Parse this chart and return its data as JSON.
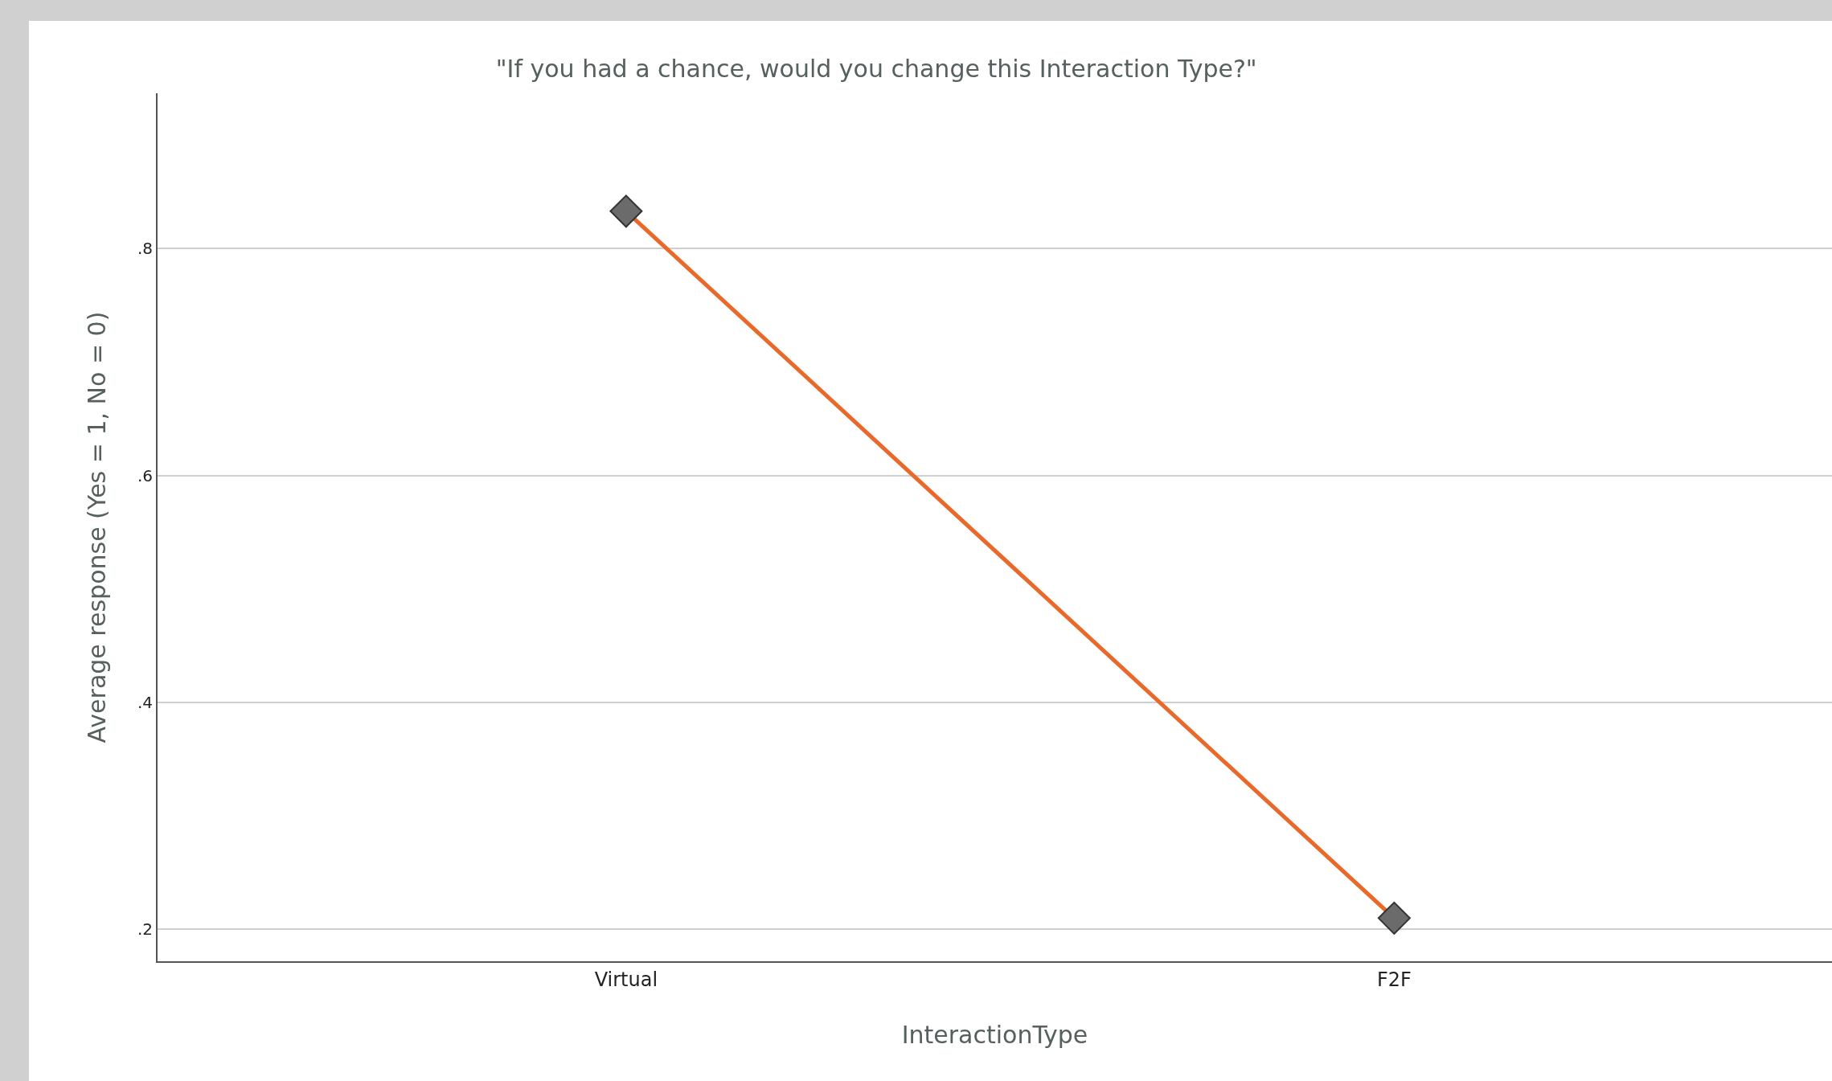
{
  "chart_data": {
    "type": "line",
    "title": "\"If you had a chance, would you change this Interaction Type?\"",
    "xlabel": "InteractionType",
    "ylabel": "Average response (Yes = 1, No = 0)",
    "categories": [
      "Virtual",
      "F2F"
    ],
    "series": [
      {
        "color": "#e8692a",
        "values": [
          0.833,
          0.21
        ]
      }
    ],
    "ylim": [
      0.172,
      0.937
    ],
    "yticks": [
      {
        "value": 0.2,
        "label": ".2"
      },
      {
        "value": 0.4,
        "label": ".4"
      },
      {
        "value": 0.6,
        "label": ".6"
      },
      {
        "value": 0.8,
        "label": ".8"
      }
    ],
    "grid": "y",
    "marker": "diamond",
    "line_style": "solid"
  }
}
